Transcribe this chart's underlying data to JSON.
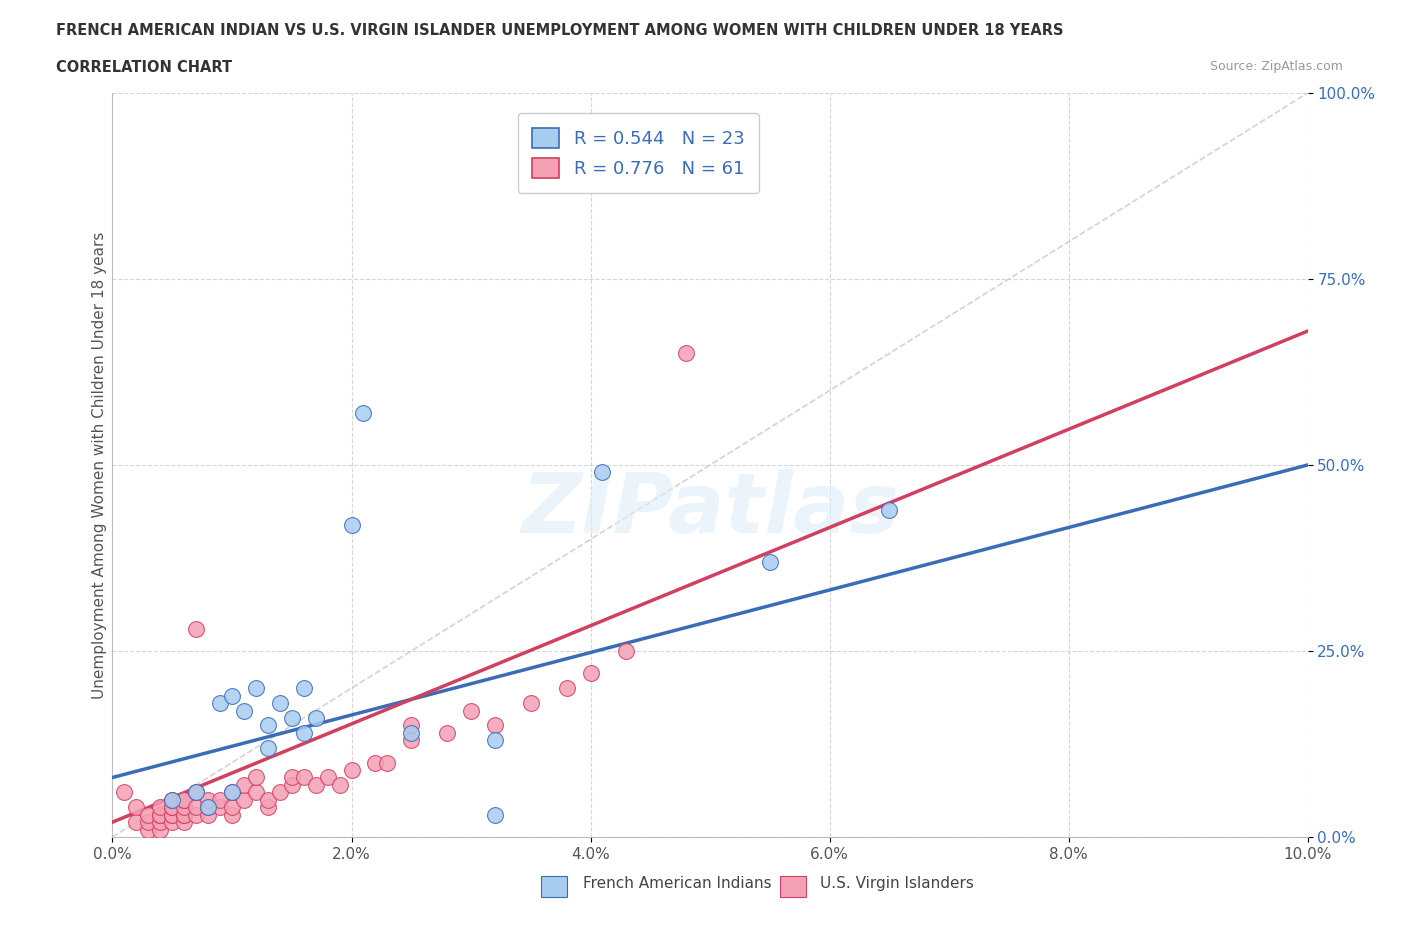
{
  "title_line1": "FRENCH AMERICAN INDIAN VS U.S. VIRGIN ISLANDER UNEMPLOYMENT AMONG WOMEN WITH CHILDREN UNDER 18 YEARS",
  "title_line2": "CORRELATION CHART",
  "source": "Source: ZipAtlas.com",
  "ylabel": "Unemployment Among Women with Children Under 18 years",
  "xlim": [
    0.0,
    0.1
  ],
  "ylim": [
    0.0,
    1.0
  ],
  "xtick_labels": [
    "0.0%",
    "2.0%",
    "4.0%",
    "6.0%",
    "8.0%",
    "10.0%"
  ],
  "xtick_vals": [
    0.0,
    0.02,
    0.04,
    0.06,
    0.08,
    0.1
  ],
  "ytick_labels": [
    "0.0%",
    "25.0%",
    "50.0%",
    "75.0%",
    "100.0%"
  ],
  "ytick_vals": [
    0.0,
    0.25,
    0.5,
    0.75,
    1.0
  ],
  "blue_color": "#A8CCF0",
  "pink_color": "#F4A0B5",
  "blue_line_color": "#3A6DB5",
  "pink_line_color": "#D04060",
  "ref_line_color": "#C8C8C8",
  "legend_R_blue": "0.544",
  "legend_N_blue": "23",
  "legend_R_pink": "0.776",
  "legend_N_pink": "61",
  "watermark": "ZIPatlas",
  "background_color": "#FFFFFF",
  "blue_scatter_x": [
    0.005,
    0.007,
    0.008,
    0.009,
    0.01,
    0.01,
    0.011,
    0.012,
    0.013,
    0.013,
    0.014,
    0.015,
    0.016,
    0.016,
    0.017,
    0.02,
    0.021,
    0.025,
    0.032,
    0.032,
    0.041,
    0.055,
    0.065
  ],
  "blue_scatter_y": [
    0.05,
    0.06,
    0.04,
    0.18,
    0.06,
    0.19,
    0.17,
    0.2,
    0.15,
    0.12,
    0.18,
    0.16,
    0.2,
    0.14,
    0.16,
    0.42,
    0.57,
    0.14,
    0.13,
    0.03,
    0.49,
    0.37,
    0.44
  ],
  "pink_scatter_x": [
    0.001,
    0.002,
    0.002,
    0.003,
    0.003,
    0.003,
    0.004,
    0.004,
    0.004,
    0.004,
    0.004,
    0.005,
    0.005,
    0.005,
    0.005,
    0.005,
    0.005,
    0.006,
    0.006,
    0.006,
    0.006,
    0.006,
    0.006,
    0.007,
    0.007,
    0.007,
    0.007,
    0.008,
    0.008,
    0.008,
    0.009,
    0.009,
    0.01,
    0.01,
    0.01,
    0.011,
    0.011,
    0.012,
    0.012,
    0.013,
    0.013,
    0.014,
    0.015,
    0.015,
    0.016,
    0.017,
    0.018,
    0.019,
    0.02,
    0.022,
    0.023,
    0.025,
    0.025,
    0.028,
    0.03,
    0.032,
    0.035,
    0.038,
    0.04,
    0.043,
    0.048
  ],
  "pink_scatter_y": [
    0.06,
    0.02,
    0.04,
    0.01,
    0.02,
    0.03,
    0.01,
    0.02,
    0.03,
    0.03,
    0.04,
    0.02,
    0.03,
    0.03,
    0.04,
    0.04,
    0.05,
    0.02,
    0.03,
    0.03,
    0.04,
    0.05,
    0.05,
    0.03,
    0.04,
    0.06,
    0.28,
    0.03,
    0.04,
    0.05,
    0.04,
    0.05,
    0.03,
    0.04,
    0.06,
    0.05,
    0.07,
    0.06,
    0.08,
    0.04,
    0.05,
    0.06,
    0.07,
    0.08,
    0.08,
    0.07,
    0.08,
    0.07,
    0.09,
    0.1,
    0.1,
    0.13,
    0.15,
    0.14,
    0.17,
    0.15,
    0.18,
    0.2,
    0.22,
    0.25,
    0.65
  ],
  "blue_trend_x": [
    0.0,
    0.1
  ],
  "blue_trend_y": [
    0.08,
    0.5
  ],
  "pink_trend_x": [
    0.0,
    0.1
  ],
  "pink_trend_y": [
    0.02,
    0.68
  ],
  "ref_line_x": [
    0.0,
    0.1
  ],
  "ref_line_y": [
    0.0,
    1.0
  ]
}
